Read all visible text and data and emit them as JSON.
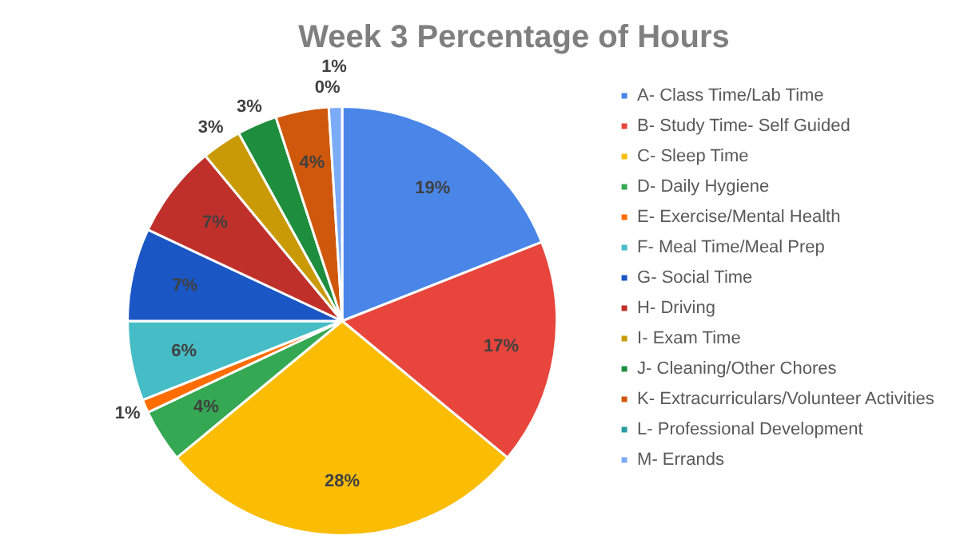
{
  "chart_data": {
    "type": "pie",
    "title": "Week 3 Percentage of Hours",
    "categories": [
      "A- Class Time/Lab Time",
      "B- Study Time- Self Guided",
      "C- Sleep Time",
      "D- Daily Hygiene",
      "E- Exercise/Mental Health",
      "F- Meal Time/Meal Prep",
      "G- Social Time",
      "H- Driving",
      "I- Exam Time",
      "J- Cleaning/Other Chores",
      "K- Extracurriculars/Volunteer Activities",
      "L- Professional Development",
      "M- Errands"
    ],
    "values": [
      19,
      17,
      28,
      4,
      1,
      6,
      7,
      7,
      3,
      3,
      4,
      0,
      1
    ],
    "colors": [
      "#4a86e8",
      "#e8453c",
      "#fbbc04",
      "#34a853",
      "#ff6d01",
      "#46bdc6",
      "#1a56c4",
      "#c0302b",
      "#c99a06",
      "#1e8e3e",
      "#d0580c",
      "#2a9ca0",
      "#7baaf7"
    ],
    "value_labels": [
      "19%",
      "17%",
      "28%",
      "4%",
      "1%",
      "6%",
      "7%",
      "7%",
      "3%",
      "3%",
      "4%",
      "0%",
      "1%"
    ],
    "legend": "right"
  }
}
